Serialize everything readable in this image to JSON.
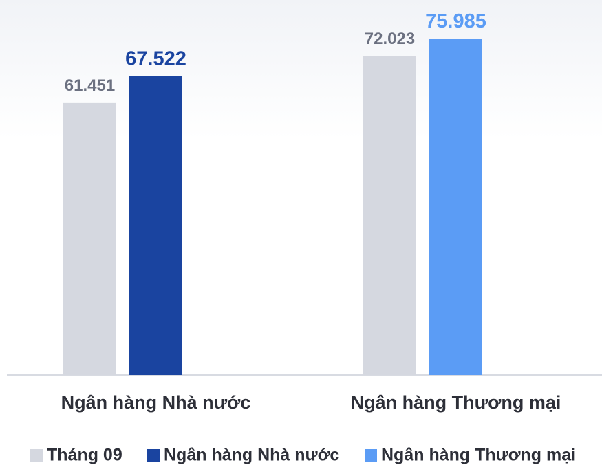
{
  "chart_data": {
    "type": "bar",
    "categories": [
      "Ngân hàng Nhà nước",
      "Ngân hàng Thương mại"
    ],
    "series": [
      {
        "name": "Tháng 09",
        "color": "#d5d8e0",
        "values": [
          61.451,
          72.023
        ]
      },
      {
        "name": "Ngân hàng Nhà nước",
        "color": "#1a44a0",
        "values": [
          67.522,
          null
        ]
      },
      {
        "name": "Ngân hàng Thương mại",
        "color": "#5b9cf5",
        "values": [
          null,
          75.985
        ]
      }
    ]
  }
}
